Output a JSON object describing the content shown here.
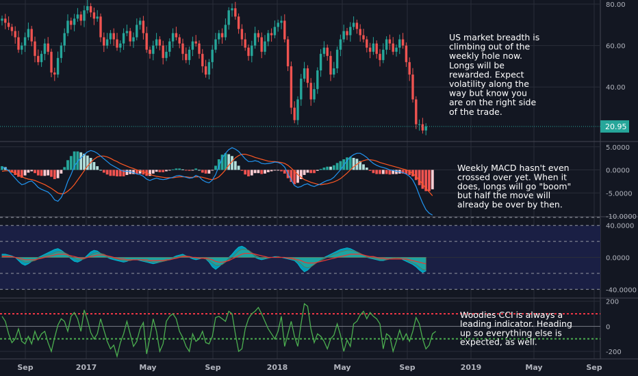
{
  "chart_data": [
    {
      "type": "candlestick",
      "panel": "price",
      "yticks": [
        "80.00",
        "60.00",
        "40.00"
      ],
      "ylim": [
        14,
        82
      ],
      "last_value": 20.95,
      "last_value_label": "20.95",
      "annotation": [
        "US market breadth is",
        "climbing out of the",
        "weekly hole now.",
        "Longs will be",
        "rewarded. Expect",
        "volatility along the",
        "way but know you",
        "are on the right side",
        "of the trade."
      ],
      "close": [
        73,
        71,
        69,
        67,
        64,
        58,
        60,
        64,
        68,
        62,
        55,
        52,
        56,
        61,
        57,
        47,
        46,
        54,
        60,
        66,
        72,
        70,
        73,
        75,
        72,
        77,
        79,
        76,
        73,
        74,
        64,
        60,
        63,
        66,
        63,
        59,
        61,
        66,
        67,
        62,
        64,
        70,
        72,
        66,
        58,
        56,
        60,
        63,
        60,
        54,
        57,
        62,
        66,
        64,
        61,
        56,
        53,
        58,
        62,
        61,
        56,
        50,
        46,
        52,
        58,
        63,
        66,
        64,
        70,
        77,
        78,
        74,
        68,
        63,
        59,
        55,
        60,
        66,
        64,
        57,
        62,
        66,
        65,
        69,
        71,
        72,
        63,
        50,
        30,
        24,
        34,
        44,
        49,
        42,
        34,
        39,
        48,
        56,
        59,
        55,
        46,
        49,
        58,
        63,
        67,
        65,
        69,
        71,
        68,
        65,
        63,
        59,
        57,
        61,
        56,
        53,
        58,
        63,
        61,
        57,
        59,
        63,
        60,
        52,
        46,
        34,
        22,
        22,
        19,
        21
      ],
      "open": [
        72,
        73,
        71,
        69,
        67,
        64,
        58,
        60,
        64,
        68,
        62,
        55,
        52,
        56,
        61,
        57,
        47,
        46,
        54,
        60,
        66,
        72,
        70,
        73,
        75,
        72,
        77,
        79,
        76,
        73,
        74,
        64,
        60,
        63,
        66,
        63,
        59,
        61,
        66,
        67,
        62,
        64,
        70,
        72,
        66,
        58,
        56,
        60,
        63,
        60,
        54,
        57,
        62,
        66,
        64,
        61,
        56,
        53,
        58,
        62,
        61,
        56,
        50,
        46,
        52,
        58,
        63,
        66,
        64,
        70,
        77,
        78,
        74,
        68,
        63,
        59,
        55,
        60,
        66,
        64,
        57,
        62,
        66,
        65,
        69,
        71,
        72,
        63,
        50,
        30,
        24,
        34,
        44,
        49,
        42,
        34,
        39,
        48,
        56,
        59,
        55,
        46,
        49,
        58,
        63,
        67,
        65,
        69,
        71,
        68,
        65,
        63,
        59,
        57,
        61,
        56,
        53,
        58,
        63,
        61,
        57,
        59,
        63,
        60,
        52,
        46,
        34,
        22,
        22,
        19
      ]
    },
    {
      "type": "macd",
      "panel": "macd",
      "yticks": [
        "5.0000",
        "0.0000",
        "-5.0000",
        "-10.0000"
      ],
      "ylim": [
        -10,
        6
      ],
      "annotation": [
        "Weekly MACD hasn't even",
        "crossed over yet. When it",
        "does, longs will go \"boom\"",
        "but half the move will",
        "already be over by then."
      ],
      "macd": [
        0.5,
        0.4,
        -0.2,
        -1,
        -1.8,
        -2.6,
        -3.2,
        -3,
        -2.6,
        -2.4,
        -3,
        -3.8,
        -4.2,
        -4.5,
        -4.8,
        -5.5,
        -6.5,
        -6.8,
        -6,
        -4.5,
        -2.5,
        -1,
        0.8,
        1.8,
        2.6,
        3.3,
        3.9,
        4.2,
        4,
        3.6,
        3,
        2.4,
        1.8,
        1.2,
        0.8,
        0.4,
        0,
        -0.3,
        -0.3,
        -0.4,
        -0.6,
        -0.9,
        -1,
        -1.4,
        -2,
        -2.3,
        -2,
        -1.8,
        -2,
        -2.1,
        -2,
        -1.8,
        -1.6,
        -1.3,
        -1.2,
        -1.4,
        -1.6,
        -1.8,
        -1.7,
        -1.2,
        -1.5,
        -2.2,
        -2.6,
        -2.8,
        -2.2,
        -1,
        0.8,
        2.5,
        3.6,
        4.4,
        4.8,
        4.5,
        4,
        3.2,
        2.4,
        1.8,
        1.8,
        2,
        1.8,
        1.4,
        1.3,
        1.4,
        1.5,
        1.7,
        1.6,
        1.3,
        0.6,
        -0.8,
        -2.2,
        -3.4,
        -3.8,
        -3.6,
        -3.2,
        -3,
        -3.4,
        -3.6,
        -3.3,
        -3,
        -2.6,
        -2.3,
        -2.1,
        -1.6,
        -0.8,
        0,
        1,
        2,
        2.8,
        3.3,
        3.6,
        3.6,
        3.2,
        2.7,
        2,
        1.4,
        1,
        0.7,
        0.5,
        0.3,
        0,
        -0.1,
        -0.3,
        -0.4,
        -0.6,
        -0.9,
        -1.4,
        -2.2,
        -3.6,
        -5.5,
        -7.2,
        -8.6,
        -9.4,
        -9.8
      ],
      "signal": [
        -0.3,
        -0.2,
        -0.2,
        -0.4,
        -0.7,
        -1.1,
        -1.5,
        -1.8,
        -2,
        -2.1,
        -2.3,
        -2.6,
        -2.9,
        -3.2,
        -3.6,
        -4,
        -4.5,
        -5,
        -5.2,
        -5.1,
        -4.6,
        -4,
        -3.2,
        -2.2,
        -1.2,
        -0.2,
        0.8,
        1.6,
        2.3,
        2.8,
        3,
        3,
        2.8,
        2.5,
        2.1,
        1.8,
        1.4,
        1.1,
        0.8,
        0.5,
        0.3,
        0,
        -0.2,
        -0.4,
        -0.7,
        -1,
        -1.2,
        -1.4,
        -1.5,
        -1.6,
        -1.7,
        -1.7,
        -1.7,
        -1.6,
        -1.5,
        -1.5,
        -1.5,
        -1.6,
        -1.6,
        -1.5,
        -1.5,
        -1.6,
        -1.8,
        -2,
        -2.1,
        -1.9,
        -1.5,
        -0.8,
        0,
        1,
        1.8,
        2.6,
        3.1,
        3.4,
        3.4,
        3.2,
        3,
        2.7,
        2.5,
        2.3,
        2.1,
        1.9,
        1.8,
        1.8,
        1.7,
        1.6,
        1.4,
        1,
        0.4,
        -0.3,
        -1,
        -1.6,
        -2.1,
        -2.4,
        -2.7,
        -2.9,
        -3.1,
        -3.2,
        -3.1,
        -3,
        -2.8,
        -2.6,
        -2.3,
        -1.9,
        -1.3,
        -0.7,
        0,
        0.7,
        1.2,
        1.7,
        2,
        2.2,
        2.2,
        2.1,
        1.9,
        1.6,
        1.4,
        1.2,
        1,
        0.8,
        0.6,
        0.4,
        0.2,
        0,
        -0.3,
        -0.8,
        -1.4,
        -2.2,
        -3.1,
        -4,
        -4.8,
        -5.6
      ]
    },
    {
      "type": "area",
      "panel": "oscillator",
      "yticks": [
        "40.0000",
        "0.0000",
        "-40.0000"
      ],
      "ylim": [
        -50,
        50
      ],
      "upper_bands": [
        40,
        20
      ],
      "lower_bands": [
        -20,
        -40
      ],
      "fast": [
        4,
        4,
        3,
        2,
        0,
        -4,
        -8,
        -10,
        -8,
        -5,
        -2,
        0,
        2,
        4,
        6,
        8,
        10,
        11,
        9,
        6,
        2,
        -2,
        -5,
        -6,
        -4,
        -1,
        3,
        7,
        9,
        8,
        5,
        2,
        0,
        -2,
        -3,
        -4,
        -5,
        -6,
        -5,
        -3,
        -2,
        -3,
        -4,
        -5,
        -6,
        -7,
        -8,
        -7,
        -6,
        -5,
        -4,
        -2,
        0,
        2,
        3,
        4,
        2,
        0,
        -2,
        -3,
        -2,
        -1,
        -2,
        -6,
        -12,
        -15,
        -12,
        -8,
        -4,
        0,
        4,
        9,
        13,
        14,
        12,
        8,
        4,
        0,
        -2,
        -3,
        -2,
        -1,
        0,
        1,
        1,
        0,
        -1,
        -2,
        -3,
        -4,
        -8,
        -14,
        -18,
        -16,
        -12,
        -8,
        -5,
        -2,
        0,
        2,
        4,
        6,
        8,
        10,
        11,
        12,
        11,
        9,
        7,
        5,
        2,
        0,
        -1,
        -2,
        -3,
        -4,
        -4,
        -3,
        -2,
        -1,
        0,
        -1,
        -3,
        -5,
        -7,
        -9,
        -12,
        -16,
        -19,
        -17
      ],
      "slow": [
        2,
        2,
        2,
        1,
        0,
        -2,
        -4,
        -6,
        -6,
        -5,
        -4,
        -2,
        0,
        2,
        3,
        4,
        6,
        7,
        7,
        6,
        4,
        1,
        -1,
        -3,
        -3,
        -2,
        0,
        3,
        5,
        6,
        5,
        4,
        2,
        1,
        -1,
        -2,
        -3,
        -4,
        -4,
        -4,
        -3,
        -3,
        -3,
        -4,
        -5,
        -5,
        -6,
        -6,
        -6,
        -5,
        -4,
        -3,
        -2,
        0,
        1,
        2,
        2,
        1,
        0,
        -1,
        -1,
        -1,
        -2,
        -4,
        -7,
        -10,
        -10,
        -9,
        -6,
        -3,
        0,
        4,
        8,
        10,
        10,
        9,
        6,
        3,
        1,
        -1,
        -1,
        -1,
        0,
        0,
        1,
        0,
        0,
        -1,
        -2,
        -3,
        -5,
        -8,
        -12,
        -13,
        -12,
        -9,
        -6,
        -4,
        -2,
        0,
        2,
        4,
        5,
        7,
        8,
        9,
        9,
        8,
        7,
        5,
        3,
        1,
        0,
        -1,
        -2,
        -3,
        -3,
        -3,
        -2,
        -1,
        -1,
        -1,
        -2,
        -3,
        -5,
        -7,
        -9,
        -12,
        -15,
        -16
      ],
      "line": [
        1,
        1,
        1,
        1,
        0,
        -1,
        -2,
        -3,
        -3,
        -3,
        -3,
        -2,
        -1,
        0,
        1,
        2,
        3,
        4,
        4,
        4,
        3,
        2,
        1,
        0,
        -1,
        -1,
        0,
        1,
        2,
        3,
        3,
        3,
        2,
        1,
        0,
        -1,
        -2,
        -2,
        -3,
        -3,
        -3,
        -3,
        -3,
        -3,
        -3,
        -4,
        -4,
        -4,
        -4,
        -4,
        -3,
        -3,
        -2,
        -1,
        0,
        1,
        1,
        1,
        0,
        0,
        -1,
        -1,
        -1,
        -2,
        -3,
        -5,
        -6,
        -6,
        -5,
        -4,
        -2,
        0,
        2,
        4,
        5,
        5,
        5,
        4,
        3,
        2,
        1,
        0,
        0,
        0,
        0,
        0,
        0,
        -1,
        -1,
        -2,
        -3,
        -4,
        -6,
        -7,
        -7,
        -7,
        -6,
        -5,
        -4,
        -3,
        -2,
        -1,
        0,
        1,
        2,
        3,
        4,
        4,
        4,
        4,
        3,
        2,
        1,
        1,
        0,
        -1,
        -1,
        -2,
        -2,
        -2,
        -2,
        -2,
        -2,
        -2,
        -3,
        -4,
        -5,
        -6,
        -7,
        -8
      ]
    },
    {
      "type": "line",
      "panel": "cci",
      "yticks": [
        "200",
        "0",
        "-200"
      ],
      "ylim": [
        -260,
        220
      ],
      "upper_level": 100,
      "lower_level": -100,
      "annotation": [
        "Woodies CCI is always a",
        "leading indicator. Heading",
        "up so everything else is",
        "expected, as well."
      ],
      "cci": [
        80,
        40,
        -60,
        -130,
        -100,
        -20,
        -120,
        -140,
        -80,
        -140,
        -40,
        -110,
        -60,
        -40,
        -130,
        -200,
        -90,
        10,
        60,
        40,
        -40,
        80,
        110,
        60,
        -40,
        130,
        50,
        -50,
        -100,
        -60,
        60,
        -30,
        -120,
        -180,
        -150,
        -240,
        -130,
        -60,
        40,
        -60,
        -160,
        -120,
        -20,
        30,
        -220,
        -90,
        60,
        -40,
        -200,
        -140,
        40,
        80,
        100,
        60,
        -40,
        -90,
        -160,
        -200,
        -60,
        -120,
        -100,
        -40,
        -130,
        -140,
        -80,
        70,
        80,
        60,
        40,
        120,
        100,
        -60,
        -200,
        -180,
        -20,
        60,
        100,
        120,
        150,
        100,
        40,
        -20,
        -60,
        -100,
        -40,
        80,
        -160,
        -60,
        40,
        -80,
        -160,
        20,
        180,
        160,
        -20,
        -130,
        -60,
        -80,
        -120,
        -180,
        -100,
        -70,
        20,
        -70,
        -200,
        -110,
        -160,
        20,
        40,
        90,
        120,
        60,
        110,
        80,
        60,
        20,
        -180,
        -60,
        -80,
        -200,
        -120,
        -30,
        -110,
        -60,
        -120,
        -40,
        70,
        20,
        -100,
        -180,
        -150,
        -60,
        -40
      ]
    }
  ],
  "x_axis": {
    "labels": [
      {
        "text": "Sep",
        "bold": false
      },
      {
        "text": "2017",
        "bold": true
      },
      {
        "text": "May",
        "bold": false
      },
      {
        "text": "Sep",
        "bold": false
      },
      {
        "text": "2018",
        "bold": true
      },
      {
        "text": "May",
        "bold": false
      },
      {
        "text": "Sep",
        "bold": false
      },
      {
        "text": "2019",
        "bold": true
      },
      {
        "text": "May",
        "bold": false
      },
      {
        "text": "Sep",
        "bold": false
      }
    ]
  },
  "colors": {
    "background": "#131722",
    "grid": "#2a2e39",
    "up": "#26a69a",
    "down": "#ef5350",
    "macd_line": "#2196f3",
    "signal_line": "#ff5722",
    "hist_up_strong": "#26a69a",
    "hist_up_weak": "#b2dfdb",
    "hist_down_strong": "#ef5350",
    "hist_down_weak": "#ffcdd2",
    "osc_band": "#1a1f44",
    "osc_fast": "#00bcd4",
    "osc_slow": "#26a69a",
    "osc_line": "#e53935",
    "cci_line": "#4caf50",
    "cci_upper": "#f23645",
    "cci_lower": "#4caf50",
    "last_value_bg": "#26a69a"
  }
}
